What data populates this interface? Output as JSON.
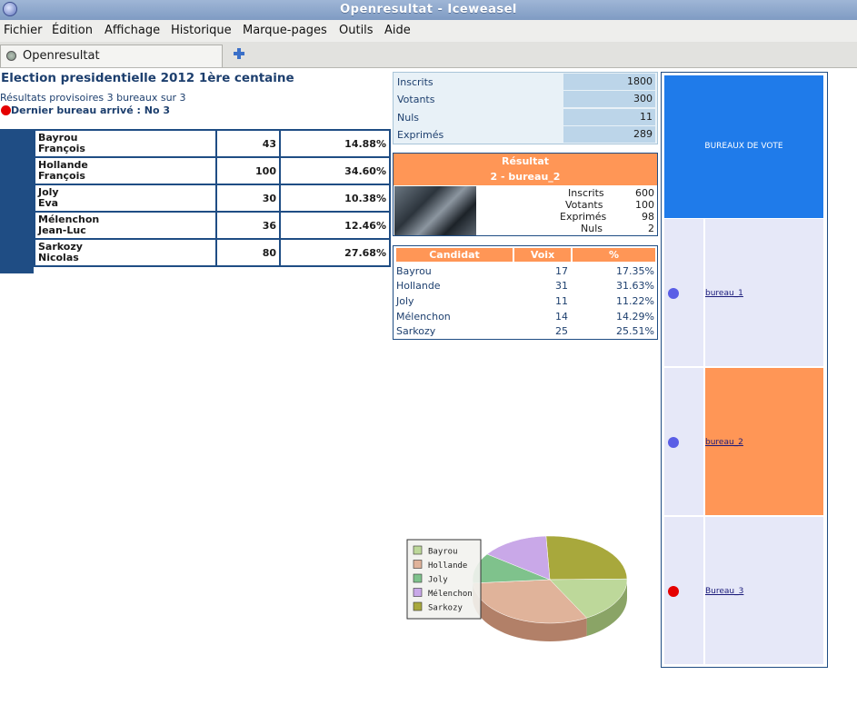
{
  "window": {
    "title": "Openresultat - Iceweasel"
  },
  "menu": [
    "Fichier",
    "Édition",
    "Affichage",
    "Historique",
    "Marque-pages",
    "Outils",
    "Aide"
  ],
  "tab": {
    "label": "Openresultat"
  },
  "page": {
    "title": "Election presidentielle 2012 1ère centaine",
    "subtitle": "Résultats provisoires 3 bureaux sur 3",
    "last_bureau": "Dernier bureau arrivé : No 3"
  },
  "results": [
    {
      "name1": "Bayrou",
      "name2": "François",
      "votes": "43",
      "percent": "14.88%"
    },
    {
      "name1": "Hollande",
      "name2": "François",
      "votes": "100",
      "percent": "34.60%"
    },
    {
      "name1": "Joly",
      "name2": "Eva",
      "votes": "30",
      "percent": "10.38%"
    },
    {
      "name1": "Mélenchon",
      "name2": "Jean-Luc",
      "votes": "36",
      "percent": "12.46%"
    },
    {
      "name1": "Sarkozy",
      "name2": "Nicolas",
      "votes": "80",
      "percent": "27.68%"
    }
  ],
  "totals": [
    {
      "label": "Inscrits",
      "value": "1800"
    },
    {
      "label": "Votants",
      "value": "300"
    },
    {
      "label": "Nuls",
      "value": "11"
    },
    {
      "label": "Exprimés",
      "value": "289"
    }
  ],
  "resultat": {
    "title": "Résultat",
    "bureau": "2 - bureau_2",
    "stats": [
      {
        "label": "Inscrits",
        "value": "600"
      },
      {
        "label": "Votants",
        "value": "100"
      },
      {
        "label": "Exprimés",
        "value": "98"
      },
      {
        "label": "Nuls",
        "value": "2"
      }
    ]
  },
  "candidates": {
    "headers": [
      "Candidat",
      "Voix",
      "%"
    ],
    "rows": [
      {
        "name": "Bayrou",
        "voix": "17",
        "pct": "17.35%"
      },
      {
        "name": "Hollande",
        "voix": "31",
        "pct": "31.63%"
      },
      {
        "name": "Joly",
        "voix": "11",
        "pct": "11.22%"
      },
      {
        "name": "Mélenchon",
        "voix": "14",
        "pct": "14.29%"
      },
      {
        "name": "Sarkozy",
        "voix": "25",
        "pct": "25.51%"
      }
    ]
  },
  "chart_data": {
    "type": "pie",
    "categories": [
      "Bayrou",
      "Hollande",
      "Joly",
      "Mélenchon",
      "Sarkozy"
    ],
    "values": [
      17,
      31,
      11,
      14,
      25
    ],
    "colors": [
      "#bdd89a",
      "#e0b39a",
      "#7fc28c",
      "#c9a8e8",
      "#a8a83c"
    ],
    "side_colors": [
      "#8aa466",
      "#b28068",
      "#5a9a66",
      "#9a7ab8",
      "#7c7c28"
    ],
    "legend_position": "left"
  },
  "bureaux": {
    "header": "BUREAUX DE VOTE",
    "items": [
      {
        "label": "bureau_1",
        "dot_color": "#5a5ee6",
        "selected": false
      },
      {
        "label": "bureau_2",
        "dot_color": "#5a5ee6",
        "selected": true
      },
      {
        "label": "Bureau_3",
        "dot_color": "#e50000",
        "selected": false
      }
    ]
  }
}
